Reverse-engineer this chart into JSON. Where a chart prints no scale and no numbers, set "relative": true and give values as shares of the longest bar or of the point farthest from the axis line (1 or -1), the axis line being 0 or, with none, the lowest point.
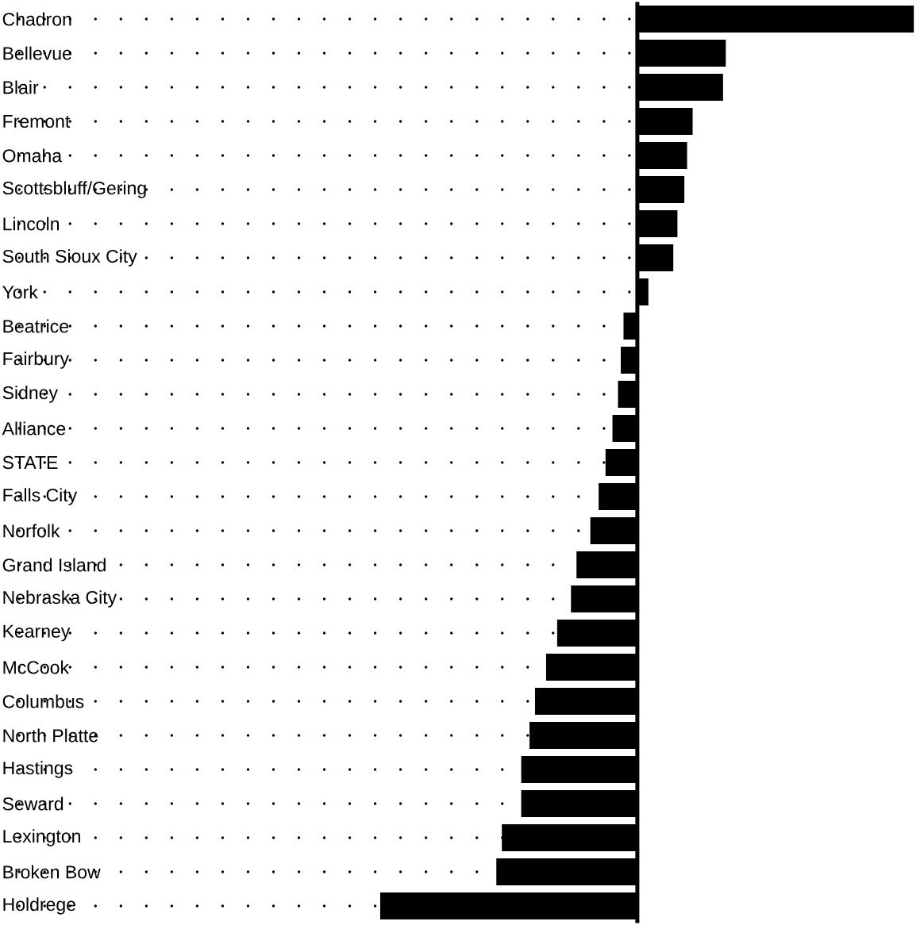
{
  "chart_data": {
    "type": "bar",
    "orientation": "horizontal",
    "relative": true,
    "grid": "y",
    "color": "#000000",
    "categories": [
      "Chadron",
      "Bellevue",
      "Blair",
      "Fremont",
      "Omaha",
      "Scottsbluff/Gering",
      "Lincoln",
      "South Sioux City",
      "York",
      "Beatrice",
      "Fairbury",
      "Sidney",
      "Alliance",
      "STATE",
      "Falls City",
      "Norfolk",
      "Grand Island",
      "Nebraska City",
      "Kearney",
      "McCook",
      "Columbus",
      "North Platte",
      "Hastings",
      "Seward",
      "Lexington",
      "Broken Bow",
      "Holdrege"
    ],
    "values": [
      1,
      0.32,
      0.31,
      0.2,
      0.18,
      0.17,
      0.145,
      0.13,
      0.04,
      -0.05,
      -0.06,
      -0.07,
      -0.09,
      -0.115,
      -0.14,
      -0.17,
      -0.22,
      -0.24,
      -0.29,
      -0.33,
      -0.37,
      -0.39,
      -0.42,
      -0.42,
      -0.49,
      -0.51,
      -0.93
    ]
  }
}
